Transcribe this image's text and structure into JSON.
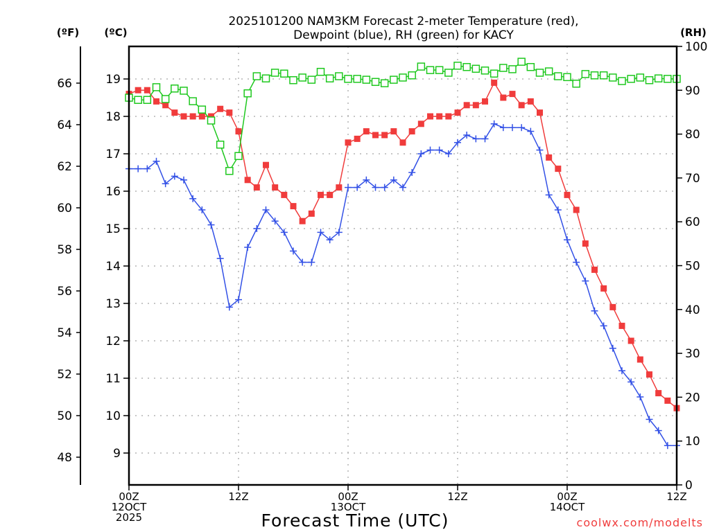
{
  "chart_data": {
    "type": "line",
    "title": "2025101200 NAM3KM Forecast 2-meter Temperature (red),",
    "subtitle": "Dewpoint (blue), RH (green) for KACY",
    "xlabel": "Forecast Time (UTC)",
    "y_left_f_unit": "(ºF)",
    "y_left_c_unit": "(ºC)",
    "y_right_unit": "(RH)",
    "credit": "coolwx.com/modelts",
    "grid": true,
    "x_hours_range": [
      0,
      60
    ],
    "ylim_c": [
      8.3,
      19.9
    ],
    "ylim_rh": [
      0,
      100
    ],
    "y_ticks_c": [
      9,
      10,
      11,
      12,
      13,
      14,
      15,
      16,
      17,
      18,
      19
    ],
    "y_ticks_f": [
      48,
      50,
      52,
      54,
      56,
      58,
      60,
      62,
      64,
      66
    ],
    "y_ticks_rh": [
      0,
      10,
      20,
      30,
      40,
      50,
      60,
      70,
      80,
      90,
      100
    ],
    "x_ticks": [
      {
        "hour": 0,
        "lines": [
          "00Z",
          "12OCT",
          "2025"
        ]
      },
      {
        "hour": 12,
        "lines": [
          "12Z"
        ]
      },
      {
        "hour": 24,
        "lines": [
          "00Z",
          "13OCT"
        ]
      },
      {
        "hour": 36,
        "lines": [
          "12Z"
        ]
      },
      {
        "hour": 48,
        "lines": [
          "00Z",
          "14OCT"
        ]
      },
      {
        "hour": 60,
        "lines": [
          "12Z"
        ]
      }
    ],
    "x": [
      0,
      1,
      2,
      3,
      4,
      5,
      6,
      7,
      8,
      9,
      10,
      11,
      12,
      13,
      14,
      15,
      16,
      17,
      18,
      19,
      20,
      21,
      22,
      23,
      24,
      25,
      26,
      27,
      28,
      29,
      30,
      31,
      32,
      33,
      34,
      35,
      36,
      37,
      38,
      39,
      40,
      41,
      42,
      43,
      44,
      45,
      46,
      47,
      48,
      49,
      50,
      51,
      52,
      53,
      54,
      55,
      56,
      57,
      58,
      59,
      60
    ],
    "series": [
      {
        "name": "Temperature",
        "axis": "celsius",
        "color": "#f03c3c",
        "marker": "filled-square",
        "values": [
          18.6,
          18.7,
          18.7,
          18.4,
          18.3,
          18.1,
          18.0,
          18.0,
          18.0,
          18.0,
          18.2,
          18.1,
          17.6,
          16.3,
          16.1,
          16.7,
          16.1,
          15.9,
          15.6,
          15.2,
          15.4,
          15.9,
          15.9,
          16.1,
          17.3,
          17.4,
          17.6,
          17.5,
          17.5,
          17.6,
          17.3,
          17.6,
          17.8,
          18.0,
          18.0,
          18.0,
          18.1,
          18.3,
          18.3,
          18.4,
          18.9,
          18.5,
          18.6,
          18.3,
          18.4,
          18.1,
          16.9,
          16.6,
          15.9,
          15.5,
          14.6,
          13.9,
          13.4,
          12.9,
          12.4,
          12.0,
          11.5,
          11.1,
          10.6,
          10.4,
          10.2
        ]
      },
      {
        "name": "Dewpoint",
        "axis": "celsius",
        "color": "#3250e6",
        "marker": "plus",
        "values": [
          16.6,
          16.6,
          16.6,
          16.8,
          16.2,
          16.4,
          16.3,
          15.8,
          15.5,
          15.1,
          14.2,
          12.9,
          13.1,
          14.5,
          15.0,
          15.5,
          15.2,
          14.9,
          14.4,
          14.1,
          14.1,
          14.9,
          14.7,
          14.9,
          16.1,
          16.1,
          16.3,
          16.1,
          16.1,
          16.3,
          16.1,
          16.5,
          17.0,
          17.1,
          17.1,
          17.0,
          17.3,
          17.5,
          17.4,
          17.4,
          17.8,
          17.7,
          17.7,
          17.7,
          17.6,
          17.1,
          15.9,
          15.5,
          14.7,
          14.1,
          13.6,
          12.8,
          12.4,
          11.8,
          11.2,
          10.9,
          10.5,
          9.9,
          9.6,
          9.2,
          9.2
        ]
      },
      {
        "name": "RH",
        "axis": "rh",
        "color": "#1ec81e",
        "marker": "open-square",
        "values": [
          88.3,
          87.8,
          87.8,
          90.7,
          88.0,
          90.4,
          89.9,
          87.5,
          85.6,
          83.1,
          77.6,
          71.6,
          75.0,
          89.3,
          93.2,
          92.7,
          94.0,
          93.8,
          92.3,
          92.9,
          92.4,
          94.2,
          92.7,
          93.2,
          92.6,
          92.6,
          92.4,
          91.9,
          91.6,
          92.4,
          92.9,
          93.4,
          95.4,
          94.6,
          94.6,
          94.0,
          95.6,
          95.3,
          94.9,
          94.5,
          93.8,
          95.1,
          94.8,
          96.5,
          95.3,
          94.0,
          94.3,
          93.2,
          93.0,
          91.5,
          93.7,
          93.4,
          93.4,
          92.9,
          92.1,
          92.6,
          92.9,
          92.3,
          92.7,
          92.6,
          92.6
        ]
      }
    ]
  }
}
